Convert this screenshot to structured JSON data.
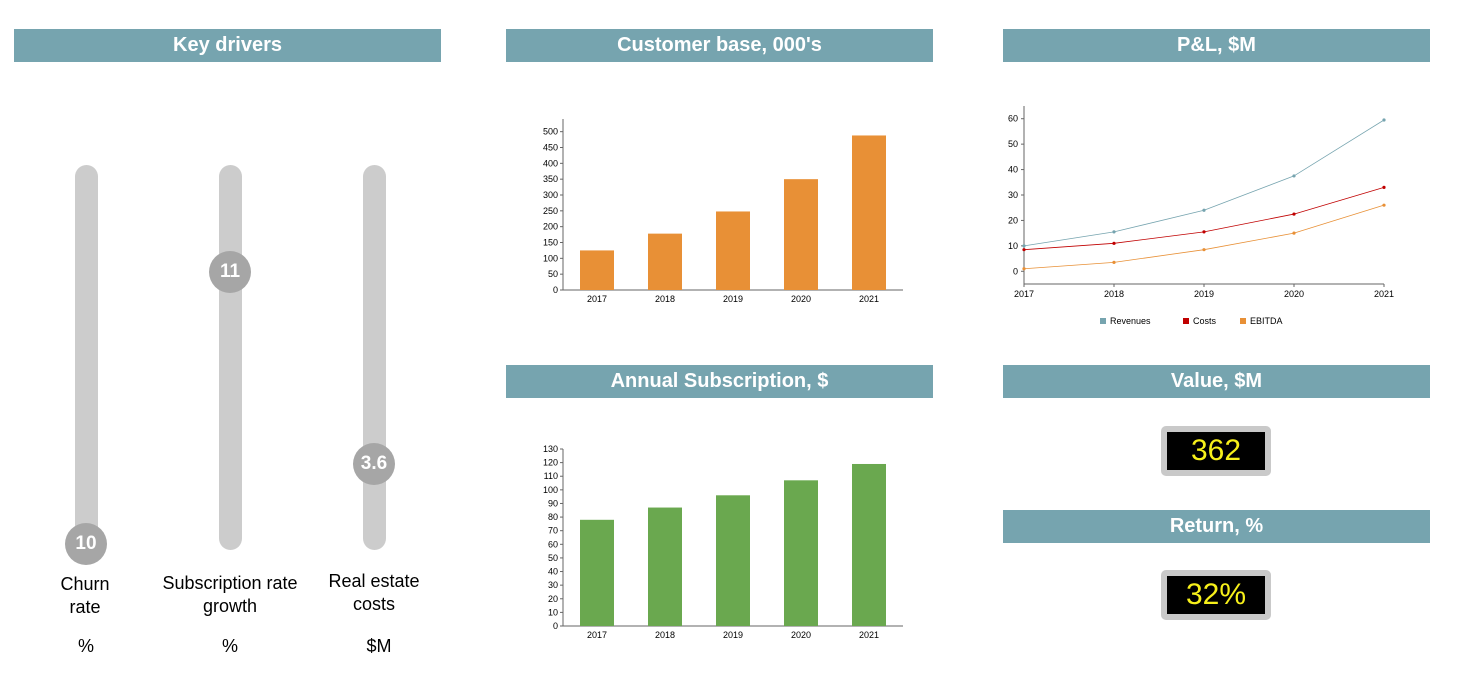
{
  "headers": {
    "key_drivers": "Key drivers",
    "customer_base": "Customer base, 000's",
    "pnl": "P&L, $M",
    "annual_subscription": "Annual Subscription, $",
    "value": "Value, $M",
    "return": "Return, %"
  },
  "sliders": [
    {
      "label_line1": "Churn",
      "label_line2": "rate",
      "unit": "%",
      "value": "10",
      "level": 0.0
    },
    {
      "label_line1": "Subscription rate",
      "label_line2": "growth",
      "unit": "%",
      "value": "11",
      "level": 0.73
    },
    {
      "label_line1": "Real estate",
      "label_line2": "costs",
      "unit": "$M",
      "value": "3.6",
      "level": 0.23
    }
  ],
  "kpis": {
    "value": "362",
    "return": "32%"
  },
  "colors": {
    "header": "#76a4af",
    "orange_bar": "#e89036",
    "green_bar": "#6aa84f",
    "revenues": "#76a4af",
    "costs": "#c00000",
    "ebitda": "#e89036",
    "display_text": "#f7f01a"
  },
  "chart_data": [
    {
      "type": "bar",
      "title": "Customer base, 000's",
      "categories": [
        "2017",
        "2018",
        "2019",
        "2020",
        "2021"
      ],
      "values": [
        125,
        178,
        248,
        350,
        488
      ],
      "ylim": [
        0,
        540
      ],
      "yticks": [
        0,
        50,
        100,
        150,
        200,
        250,
        300,
        350,
        400,
        450,
        500
      ],
      "color": "#e89036"
    },
    {
      "type": "bar",
      "title": "Annual Subscription, $",
      "categories": [
        "2017",
        "2018",
        "2019",
        "2020",
        "2021"
      ],
      "values": [
        78,
        87,
        96,
        107,
        119
      ],
      "ylim": [
        0,
        130
      ],
      "yticks": [
        0,
        10,
        20,
        30,
        40,
        50,
        60,
        70,
        80,
        90,
        100,
        110,
        120,
        130
      ],
      "color": "#6aa84f"
    },
    {
      "type": "line",
      "title": "P&L, $M",
      "categories": [
        "2017",
        "2018",
        "2019",
        "2020",
        "2021"
      ],
      "ylim": [
        -5,
        65
      ],
      "yticks": [
        0,
        10,
        20,
        30,
        40,
        50,
        60
      ],
      "legend": "bottom",
      "series": [
        {
          "name": "Revenues",
          "values": [
            10,
            15.5,
            24,
            37.5,
            59.5
          ],
          "color": "#76a4af"
        },
        {
          "name": "Costs",
          "values": [
            8.5,
            11,
            15.5,
            22.5,
            33
          ],
          "color": "#c00000"
        },
        {
          "name": "EBITDA",
          "values": [
            1,
            3.5,
            8.5,
            15,
            26
          ],
          "color": "#e89036"
        }
      ]
    }
  ]
}
